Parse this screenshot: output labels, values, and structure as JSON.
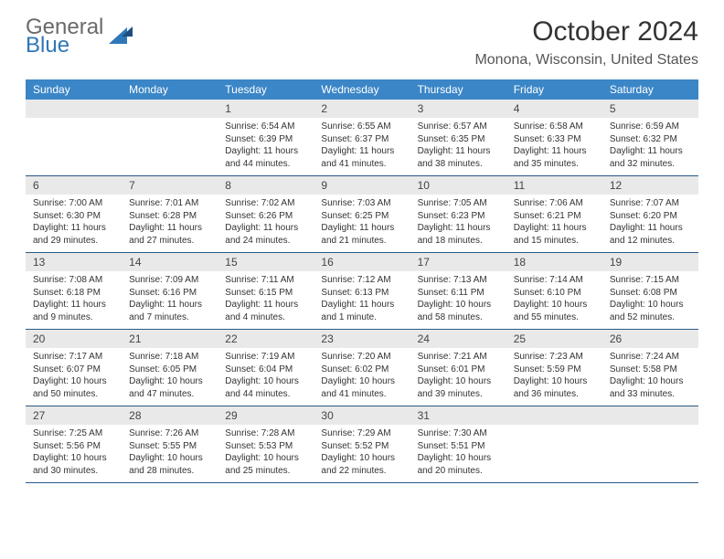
{
  "logo": {
    "general": "General",
    "blue": "Blue"
  },
  "title": "October 2024",
  "location": "Monona, Wisconsin, United States",
  "colors": {
    "header_bg": "#3b86c7",
    "daynum_bg": "#e9e9e9",
    "divider": "#285a8a",
    "text": "#333333",
    "logo_blue": "#2f77b8"
  },
  "weekdays": [
    "Sunday",
    "Monday",
    "Tuesday",
    "Wednesday",
    "Thursday",
    "Friday",
    "Saturday"
  ],
  "weeks": [
    [
      {
        "num": "",
        "sunrise": "",
        "sunset": "",
        "day1": "",
        "day2": ""
      },
      {
        "num": "",
        "sunrise": "",
        "sunset": "",
        "day1": "",
        "day2": ""
      },
      {
        "num": "1",
        "sunrise": "Sunrise: 6:54 AM",
        "sunset": "Sunset: 6:39 PM",
        "day1": "Daylight: 11 hours",
        "day2": "and 44 minutes."
      },
      {
        "num": "2",
        "sunrise": "Sunrise: 6:55 AM",
        "sunset": "Sunset: 6:37 PM",
        "day1": "Daylight: 11 hours",
        "day2": "and 41 minutes."
      },
      {
        "num": "3",
        "sunrise": "Sunrise: 6:57 AM",
        "sunset": "Sunset: 6:35 PM",
        "day1": "Daylight: 11 hours",
        "day2": "and 38 minutes."
      },
      {
        "num": "4",
        "sunrise": "Sunrise: 6:58 AM",
        "sunset": "Sunset: 6:33 PM",
        "day1": "Daylight: 11 hours",
        "day2": "and 35 minutes."
      },
      {
        "num": "5",
        "sunrise": "Sunrise: 6:59 AM",
        "sunset": "Sunset: 6:32 PM",
        "day1": "Daylight: 11 hours",
        "day2": "and 32 minutes."
      }
    ],
    [
      {
        "num": "6",
        "sunrise": "Sunrise: 7:00 AM",
        "sunset": "Sunset: 6:30 PM",
        "day1": "Daylight: 11 hours",
        "day2": "and 29 minutes."
      },
      {
        "num": "7",
        "sunrise": "Sunrise: 7:01 AM",
        "sunset": "Sunset: 6:28 PM",
        "day1": "Daylight: 11 hours",
        "day2": "and 27 minutes."
      },
      {
        "num": "8",
        "sunrise": "Sunrise: 7:02 AM",
        "sunset": "Sunset: 6:26 PM",
        "day1": "Daylight: 11 hours",
        "day2": "and 24 minutes."
      },
      {
        "num": "9",
        "sunrise": "Sunrise: 7:03 AM",
        "sunset": "Sunset: 6:25 PM",
        "day1": "Daylight: 11 hours",
        "day2": "and 21 minutes."
      },
      {
        "num": "10",
        "sunrise": "Sunrise: 7:05 AM",
        "sunset": "Sunset: 6:23 PM",
        "day1": "Daylight: 11 hours",
        "day2": "and 18 minutes."
      },
      {
        "num": "11",
        "sunrise": "Sunrise: 7:06 AM",
        "sunset": "Sunset: 6:21 PM",
        "day1": "Daylight: 11 hours",
        "day2": "and 15 minutes."
      },
      {
        "num": "12",
        "sunrise": "Sunrise: 7:07 AM",
        "sunset": "Sunset: 6:20 PM",
        "day1": "Daylight: 11 hours",
        "day2": "and 12 minutes."
      }
    ],
    [
      {
        "num": "13",
        "sunrise": "Sunrise: 7:08 AM",
        "sunset": "Sunset: 6:18 PM",
        "day1": "Daylight: 11 hours",
        "day2": "and 9 minutes."
      },
      {
        "num": "14",
        "sunrise": "Sunrise: 7:09 AM",
        "sunset": "Sunset: 6:16 PM",
        "day1": "Daylight: 11 hours",
        "day2": "and 7 minutes."
      },
      {
        "num": "15",
        "sunrise": "Sunrise: 7:11 AM",
        "sunset": "Sunset: 6:15 PM",
        "day1": "Daylight: 11 hours",
        "day2": "and 4 minutes."
      },
      {
        "num": "16",
        "sunrise": "Sunrise: 7:12 AM",
        "sunset": "Sunset: 6:13 PM",
        "day1": "Daylight: 11 hours",
        "day2": "and 1 minute."
      },
      {
        "num": "17",
        "sunrise": "Sunrise: 7:13 AM",
        "sunset": "Sunset: 6:11 PM",
        "day1": "Daylight: 10 hours",
        "day2": "and 58 minutes."
      },
      {
        "num": "18",
        "sunrise": "Sunrise: 7:14 AM",
        "sunset": "Sunset: 6:10 PM",
        "day1": "Daylight: 10 hours",
        "day2": "and 55 minutes."
      },
      {
        "num": "19",
        "sunrise": "Sunrise: 7:15 AM",
        "sunset": "Sunset: 6:08 PM",
        "day1": "Daylight: 10 hours",
        "day2": "and 52 minutes."
      }
    ],
    [
      {
        "num": "20",
        "sunrise": "Sunrise: 7:17 AM",
        "sunset": "Sunset: 6:07 PM",
        "day1": "Daylight: 10 hours",
        "day2": "and 50 minutes."
      },
      {
        "num": "21",
        "sunrise": "Sunrise: 7:18 AM",
        "sunset": "Sunset: 6:05 PM",
        "day1": "Daylight: 10 hours",
        "day2": "and 47 minutes."
      },
      {
        "num": "22",
        "sunrise": "Sunrise: 7:19 AM",
        "sunset": "Sunset: 6:04 PM",
        "day1": "Daylight: 10 hours",
        "day2": "and 44 minutes."
      },
      {
        "num": "23",
        "sunrise": "Sunrise: 7:20 AM",
        "sunset": "Sunset: 6:02 PM",
        "day1": "Daylight: 10 hours",
        "day2": "and 41 minutes."
      },
      {
        "num": "24",
        "sunrise": "Sunrise: 7:21 AM",
        "sunset": "Sunset: 6:01 PM",
        "day1": "Daylight: 10 hours",
        "day2": "and 39 minutes."
      },
      {
        "num": "25",
        "sunrise": "Sunrise: 7:23 AM",
        "sunset": "Sunset: 5:59 PM",
        "day1": "Daylight: 10 hours",
        "day2": "and 36 minutes."
      },
      {
        "num": "26",
        "sunrise": "Sunrise: 7:24 AM",
        "sunset": "Sunset: 5:58 PM",
        "day1": "Daylight: 10 hours",
        "day2": "and 33 minutes."
      }
    ],
    [
      {
        "num": "27",
        "sunrise": "Sunrise: 7:25 AM",
        "sunset": "Sunset: 5:56 PM",
        "day1": "Daylight: 10 hours",
        "day2": "and 30 minutes."
      },
      {
        "num": "28",
        "sunrise": "Sunrise: 7:26 AM",
        "sunset": "Sunset: 5:55 PM",
        "day1": "Daylight: 10 hours",
        "day2": "and 28 minutes."
      },
      {
        "num": "29",
        "sunrise": "Sunrise: 7:28 AM",
        "sunset": "Sunset: 5:53 PM",
        "day1": "Daylight: 10 hours",
        "day2": "and 25 minutes."
      },
      {
        "num": "30",
        "sunrise": "Sunrise: 7:29 AM",
        "sunset": "Sunset: 5:52 PM",
        "day1": "Daylight: 10 hours",
        "day2": "and 22 minutes."
      },
      {
        "num": "31",
        "sunrise": "Sunrise: 7:30 AM",
        "sunset": "Sunset: 5:51 PM",
        "day1": "Daylight: 10 hours",
        "day2": "and 20 minutes."
      },
      {
        "num": "",
        "sunrise": "",
        "sunset": "",
        "day1": "",
        "day2": ""
      },
      {
        "num": "",
        "sunrise": "",
        "sunset": "",
        "day1": "",
        "day2": ""
      }
    ]
  ]
}
